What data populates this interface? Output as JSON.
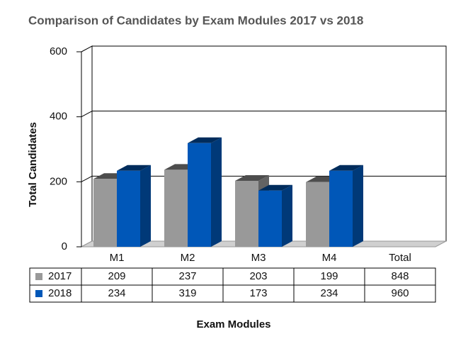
{
  "chart_data": {
    "type": "bar3d",
    "title": "Comparison of Candidates by Exam Modules 2017 vs 2018",
    "x_label": "Exam Modules",
    "y_label": "Total Candidates",
    "categories": [
      "M1",
      "M2",
      "M3",
      "M4"
    ],
    "total_label": "Total",
    "series": [
      {
        "name": "2017",
        "color": "#999999",
        "values": [
          209,
          237,
          203,
          199
        ],
        "total": 848
      },
      {
        "name": "2018",
        "color": "#0057b8",
        "values": [
          234,
          319,
          173,
          234
        ],
        "total": 960
      }
    ],
    "ylim": [
      0,
      600
    ],
    "yticks": [
      0,
      200,
      400,
      600
    ],
    "grid": true
  }
}
